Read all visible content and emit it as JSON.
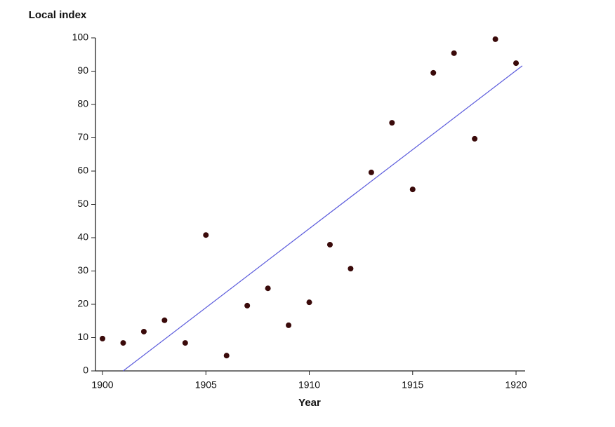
{
  "chart_data": {
    "type": "scatter",
    "y_label": "Local index",
    "x_label": "Year",
    "xlim": [
      1899.66,
      1920.44
    ],
    "ylim": [
      0,
      100
    ],
    "xticks": [
      1900,
      1905,
      1910,
      1915,
      1920
    ],
    "yticks": [
      0,
      10,
      20,
      30,
      40,
      50,
      60,
      70,
      80,
      90,
      100
    ],
    "points": {
      "color": "#3a0a0a",
      "x": [
        1900,
        1901,
        1902,
        1903,
        1904,
        1905,
        1906,
        1907,
        1908,
        1909,
        1910,
        1911,
        1912,
        1913,
        1914,
        1915,
        1916,
        1917,
        1918,
        1919,
        1920
      ],
      "values": [
        9.7,
        8.4,
        11.8,
        15.2,
        8.4,
        40.8,
        4.6,
        19.6,
        24.8,
        13.7,
        20.6,
        37.9,
        30.7,
        59.6,
        74.5,
        54.5,
        89.5,
        95.4,
        69.7,
        99.6,
        92.4
      ]
    },
    "fit": {
      "color": "#5b5bdc",
      "x": [
        1901,
        1920.3
      ],
      "values": [
        0,
        91.6
      ]
    }
  }
}
